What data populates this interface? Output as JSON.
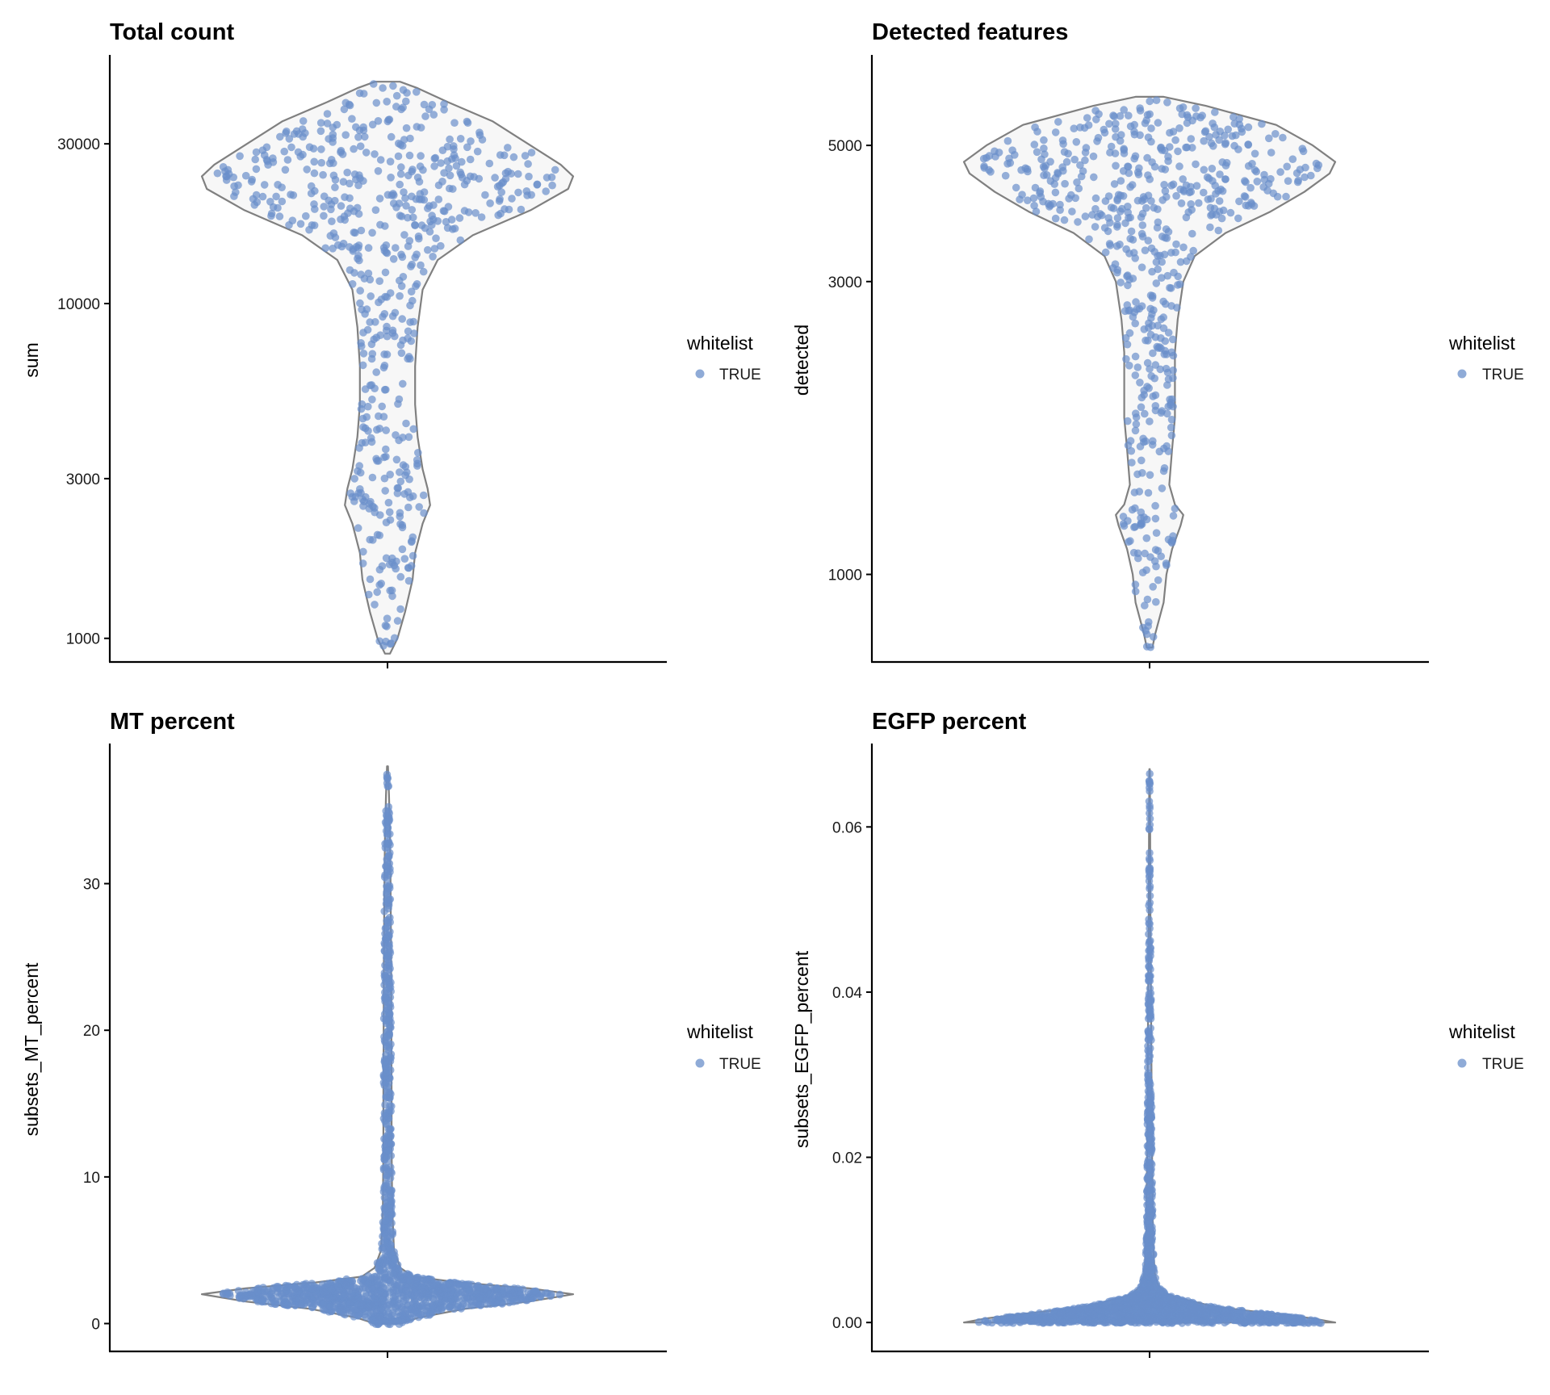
{
  "chart_data": [
    {
      "type": "violin",
      "title": "Total count",
      "ylabel": "sum",
      "xlabel": "",
      "yscale": "log",
      "ylim": [
        850,
        55000
      ],
      "yticks": [
        1000,
        3000,
        10000,
        30000
      ],
      "ytick_labels": [
        "1000",
        "3000",
        "10000",
        "30000"
      ],
      "legend": {
        "title": "whitelist",
        "entries": [
          "TRUE"
        ],
        "position": "right"
      },
      "series": [
        {
          "name": "TRUE",
          "n_points": 600,
          "density": [
            [
              900,
              0.01
            ],
            [
              1000,
              0.04
            ],
            [
              1200,
              0.07
            ],
            [
              1500,
              0.1
            ],
            [
              1800,
              0.11
            ],
            [
              2200,
              0.14
            ],
            [
              2500,
              0.17
            ],
            [
              2800,
              0.16
            ],
            [
              3200,
              0.14
            ],
            [
              4000,
              0.12
            ],
            [
              5000,
              0.11
            ],
            [
              6500,
              0.11
            ],
            [
              8500,
              0.12
            ],
            [
              11000,
              0.14
            ],
            [
              13500,
              0.2
            ],
            [
              16000,
              0.34
            ],
            [
              19000,
              0.57
            ],
            [
              22000,
              0.72
            ],
            [
              24000,
              0.74
            ],
            [
              26000,
              0.69
            ],
            [
              30000,
              0.56
            ],
            [
              35000,
              0.42
            ],
            [
              40000,
              0.24
            ],
            [
              44000,
              0.12
            ],
            [
              46000,
              0.05
            ]
          ]
        }
      ],
      "grid": false
    },
    {
      "type": "violin",
      "title": "Detected features",
      "ylabel": "detected",
      "xlabel": "",
      "yscale": "log",
      "ylim": [
        720,
        7000
      ],
      "yticks": [
        1000,
        3000,
        5000
      ],
      "ytick_labels": [
        "1000",
        "3000",
        "5000"
      ],
      "legend": {
        "title": "whitelist",
        "entries": [
          "TRUE"
        ],
        "position": "right"
      },
      "series": [
        {
          "name": "TRUE",
          "n_points": 600,
          "density": [
            [
              760,
              0.01
            ],
            [
              800,
              0.02
            ],
            [
              900,
              0.05
            ],
            [
              1000,
              0.06
            ],
            [
              1100,
              0.08
            ],
            [
              1200,
              0.11
            ],
            [
              1250,
              0.12
            ],
            [
              1300,
              0.09
            ],
            [
              1400,
              0.07
            ],
            [
              1600,
              0.08
            ],
            [
              1800,
              0.09
            ],
            [
              2000,
              0.09
            ],
            [
              2300,
              0.09
            ],
            [
              2600,
              0.1
            ],
            [
              3000,
              0.12
            ],
            [
              3300,
              0.16
            ],
            [
              3600,
              0.27
            ],
            [
              3900,
              0.43
            ],
            [
              4200,
              0.55
            ],
            [
              4500,
              0.64
            ],
            [
              4700,
              0.66
            ],
            [
              5000,
              0.58
            ],
            [
              5400,
              0.45
            ],
            [
              5800,
              0.2
            ],
            [
              6000,
              0.05
            ]
          ]
        }
      ],
      "grid": false
    },
    {
      "type": "violin",
      "title": "MT percent",
      "ylabel": "subsets_MT_percent",
      "xlabel": "",
      "yscale": "linear",
      "ylim": [
        -1.9,
        39.5
      ],
      "yticks": [
        0,
        10,
        20,
        30
      ],
      "ytick_labels": [
        "0",
        "10",
        "20",
        "30"
      ],
      "legend": {
        "title": "whitelist",
        "entries": [
          "TRUE"
        ],
        "position": "right"
      },
      "series": [
        {
          "name": "TRUE",
          "n_points": 1400,
          "density": [
            [
              0,
              0.05
            ],
            [
              0.4,
              0.12
            ],
            [
              1.0,
              0.3
            ],
            [
              1.5,
              0.55
            ],
            [
              2.0,
              0.72
            ],
            [
              2.4,
              0.55
            ],
            [
              2.8,
              0.28
            ],
            [
              3.2,
              0.1
            ],
            [
              3.8,
              0.05
            ],
            [
              5,
              0.025
            ],
            [
              8,
              0.018
            ],
            [
              12,
              0.016
            ],
            [
              15,
              0.016
            ],
            [
              20,
              0.015
            ],
            [
              25,
              0.014
            ],
            [
              30,
              0.012
            ],
            [
              33,
              0.01
            ],
            [
              36,
              0.006
            ],
            [
              38,
              0.002
            ]
          ]
        }
      ],
      "grid": false
    },
    {
      "type": "violin",
      "title": "EGFP percent",
      "ylabel": "subsets_EGFP_percent",
      "xlabel": "",
      "yscale": "linear",
      "ylim": [
        -0.0035,
        0.07
      ],
      "yticks": [
        0.0,
        0.02,
        0.04,
        0.06
      ],
      "ytick_labels": [
        "0.00",
        "0.02",
        "0.04",
        "0.06"
      ],
      "legend": {
        "title": "whitelist",
        "entries": [
          "TRUE"
        ],
        "position": "right"
      },
      "series": [
        {
          "name": "TRUE",
          "n_points": 1500,
          "density": [
            [
              0,
              0.66
            ],
            [
              0.0005,
              0.58
            ],
            [
              0.001,
              0.46
            ],
            [
              0.0015,
              0.33
            ],
            [
              0.002,
              0.22
            ],
            [
              0.0025,
              0.16
            ],
            [
              0.003,
              0.1
            ],
            [
              0.0035,
              0.06
            ],
            [
              0.0045,
              0.03
            ],
            [
              0.006,
              0.018
            ],
            [
              0.01,
              0.012
            ],
            [
              0.02,
              0.009
            ],
            [
              0.03,
              0.007
            ],
            [
              0.04,
              0.005
            ],
            [
              0.05,
              0.003
            ],
            [
              0.06,
              0.002
            ],
            [
              0.067,
              0.001
            ]
          ]
        }
      ],
      "grid": false
    }
  ],
  "colors": {
    "point": "#6a8fca",
    "violin_outline": "#808080",
    "axis": "#000000"
  }
}
